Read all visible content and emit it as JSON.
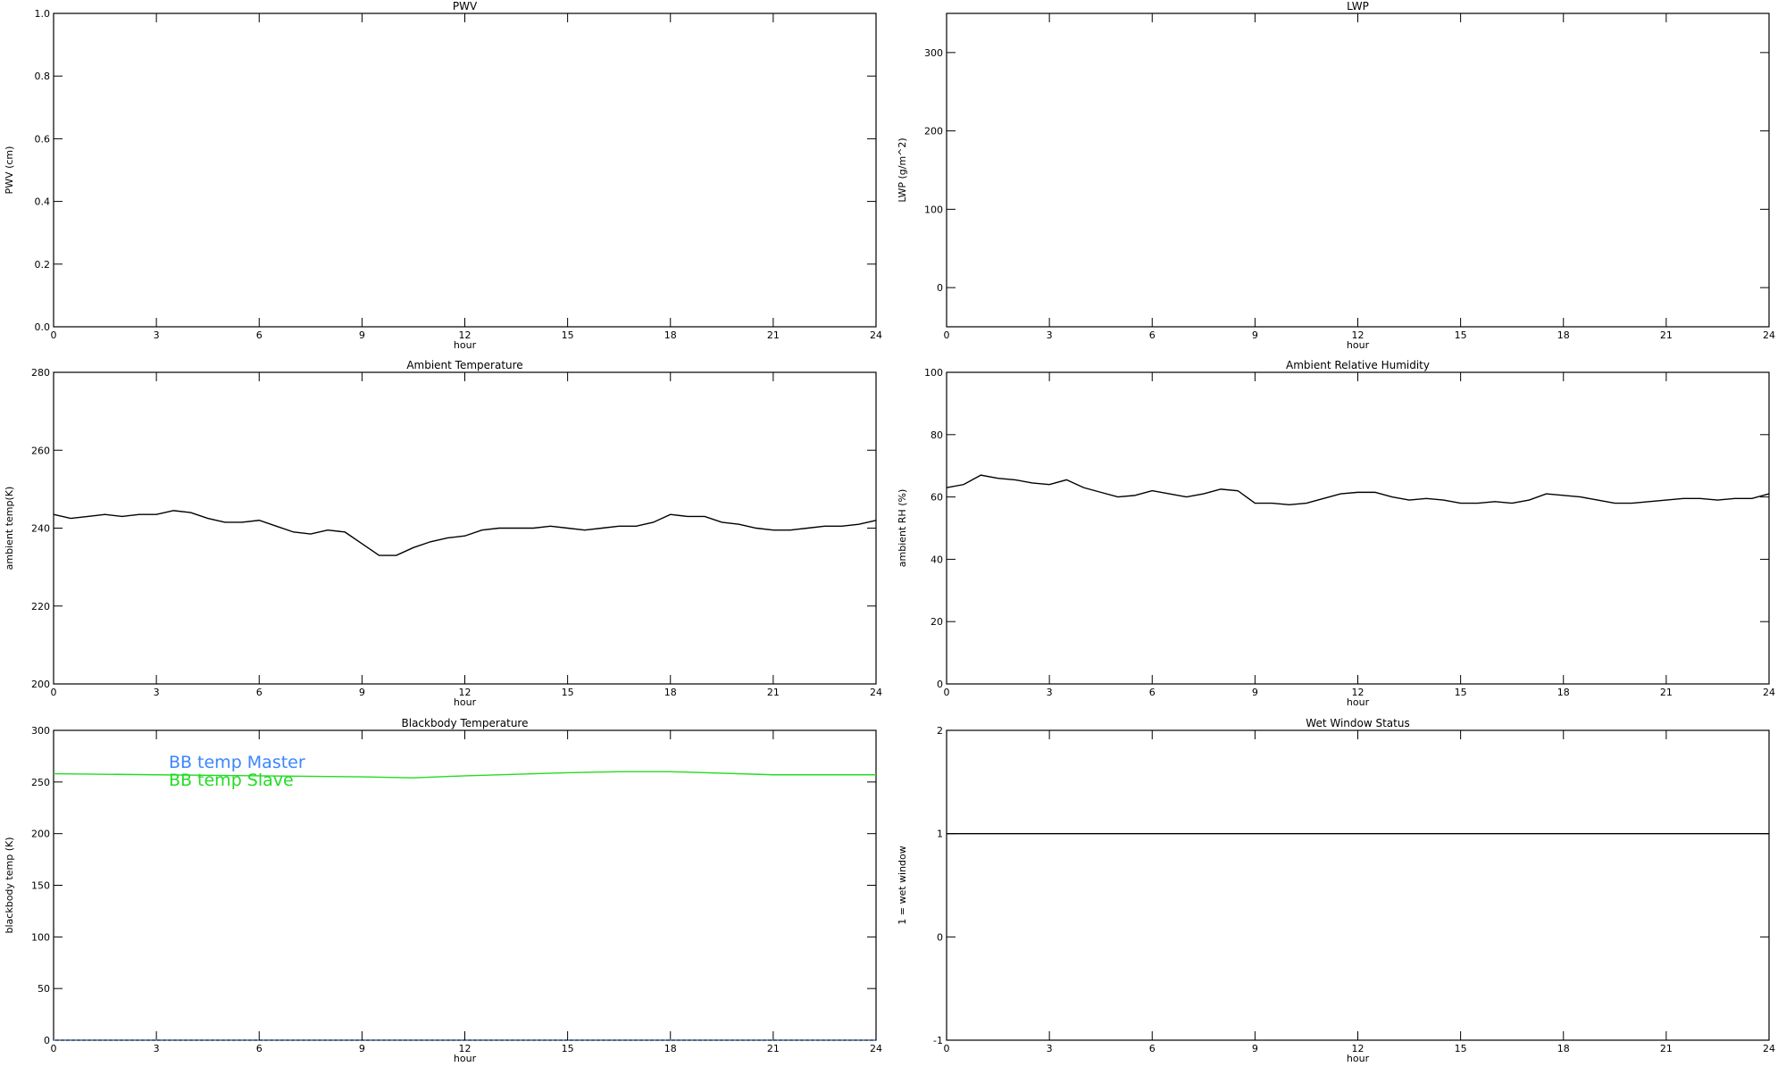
{
  "chart_data": [
    {
      "type": "line",
      "title": "PWV",
      "xlabel": "hour",
      "ylabel": "PWV (cm)",
      "xlim": [
        0,
        24
      ],
      "xticks": [
        0,
        3,
        6,
        9,
        12,
        15,
        18,
        21,
        24
      ],
      "ylim": [
        0,
        1
      ],
      "yticks": [
        {
          "value": 0,
          "label": "0.0"
        },
        {
          "value": 0.2,
          "label": "0.2"
        },
        {
          "value": 0.4,
          "label": "0.4"
        },
        {
          "value": 0.6,
          "label": "0.6"
        },
        {
          "value": 0.8,
          "label": "0.8"
        },
        {
          "value": 1,
          "label": "1.0"
        }
      ],
      "x": [],
      "series": []
    },
    {
      "type": "line",
      "title": "LWP",
      "xlabel": "hour",
      "ylabel": "LWP (g/m^2)",
      "xlim": [
        0,
        24
      ],
      "xticks": [
        0,
        3,
        6,
        9,
        12,
        15,
        18,
        21,
        24
      ],
      "ylim": [
        -50,
        350
      ],
      "yticks": [
        0,
        100,
        200,
        300
      ],
      "x": [],
      "series": []
    },
    {
      "type": "line",
      "title": "Ambient Temperature",
      "xlabel": "hour",
      "ylabel": "ambient temp(K)",
      "xlim": [
        0,
        24
      ],
      "xticks": [
        0,
        3,
        6,
        9,
        12,
        15,
        18,
        21,
        24
      ],
      "ylim": [
        200,
        280
      ],
      "yticks": [
        200,
        220,
        240,
        260,
        280
      ],
      "x": [
        0,
        0.5,
        1,
        1.5,
        2,
        2.5,
        3,
        3.5,
        4,
        4.5,
        5,
        5.5,
        6,
        6.5,
        7,
        7.5,
        8,
        8.5,
        9,
        9.5,
        10,
        10.5,
        11,
        11.5,
        12,
        12.5,
        13,
        13.5,
        14,
        14.5,
        15,
        15.5,
        16,
        16.5,
        17,
        17.5,
        18,
        18.5,
        19,
        19.5,
        20,
        20.5,
        21,
        21.5,
        22,
        22.5,
        23,
        23.5,
        24
      ],
      "series": [
        {
          "color": "#000000",
          "values": [
            243.5,
            242.5,
            243,
            243.5,
            243,
            243.5,
            243.5,
            244.5,
            244,
            242.5,
            241.5,
            241.5,
            242,
            240.5,
            239,
            238.5,
            239.5,
            239,
            236,
            233,
            233,
            235,
            236.5,
            237.5,
            238,
            239.5,
            240,
            240,
            240,
            240.5,
            240,
            239.5,
            240,
            240.5,
            240.5,
            241.5,
            243.5,
            243,
            243,
            241.5,
            241,
            240,
            239.5,
            239.5,
            240,
            240.5,
            240.5,
            241,
            242
          ]
        }
      ]
    },
    {
      "type": "line",
      "title": "Ambient Relative Humidity",
      "xlabel": "hour",
      "ylabel": "ambient RH (%)",
      "xlim": [
        0,
        24
      ],
      "xticks": [
        0,
        3,
        6,
        9,
        12,
        15,
        18,
        21,
        24
      ],
      "ylim": [
        0,
        100
      ],
      "yticks": [
        0,
        20,
        40,
        60,
        80,
        100
      ],
      "x": [
        0,
        0.5,
        1,
        1.5,
        2,
        2.5,
        3,
        3.5,
        4,
        4.5,
        5,
        5.5,
        6,
        6.5,
        7,
        7.5,
        8,
        8.5,
        9,
        9.5,
        10,
        10.5,
        11,
        11.5,
        12,
        12.5,
        13,
        13.5,
        14,
        14.5,
        15,
        15.5,
        16,
        16.5,
        17,
        17.5,
        18,
        18.5,
        19,
        19.5,
        20,
        20.5,
        21,
        21.5,
        22,
        22.5,
        23,
        23.5,
        24
      ],
      "series": [
        {
          "color": "#000000",
          "values": [
            63,
            64,
            67,
            66,
            65.5,
            64.5,
            64,
            65.5,
            63,
            61.5,
            60,
            60.5,
            62,
            61,
            60,
            61,
            62.5,
            62,
            58,
            58,
            57.5,
            58,
            59.5,
            61,
            61.5,
            61.5,
            60,
            59,
            59.5,
            59,
            58,
            58,
            58.5,
            58,
            59,
            61,
            60.5,
            60,
            59,
            58,
            58,
            58.5,
            59,
            59.5,
            59.5,
            59,
            59.5,
            59.5,
            61
          ]
        }
      ]
    },
    {
      "type": "line",
      "title": "Blackbody Temperature",
      "xlabel": "hour",
      "ylabel": "blackbody temp (K)",
      "xlim": [
        0,
        24
      ],
      "xticks": [
        0,
        3,
        6,
        9,
        12,
        15,
        18,
        21,
        24
      ],
      "ylim": [
        0,
        300
      ],
      "yticks": [
        0,
        50,
        100,
        150,
        200,
        250,
        300
      ],
      "legend": "upper left",
      "x": [
        0,
        3,
        6,
        9,
        10.5,
        12,
        15,
        16.5,
        18,
        21,
        24
      ],
      "series": [
        {
          "name": "BB temp Master",
          "color": "#3a86ff",
          "linestyle": "dotted",
          "values": [
            0,
            0,
            0,
            0,
            0,
            0,
            0,
            0,
            0,
            0,
            0
          ]
        },
        {
          "name": "BB temp Slave",
          "color": "#22dd22",
          "linestyle": "solid",
          "values": [
            258,
            257,
            256,
            255,
            254,
            256,
            259,
            260,
            260,
            257,
            257
          ]
        }
      ]
    },
    {
      "type": "line",
      "title": "Wet Window Status",
      "xlabel": "hour",
      "ylabel": "1 = wet window",
      "xlim": [
        0,
        24
      ],
      "xticks": [
        0,
        3,
        6,
        9,
        12,
        15,
        18,
        21,
        24
      ],
      "ylim": [
        -1,
        2
      ],
      "yticks": [
        -1,
        0,
        1,
        2
      ],
      "x": [
        0,
        24
      ],
      "series": [
        {
          "color": "#000000",
          "values": [
            1,
            1
          ]
        }
      ]
    }
  ]
}
